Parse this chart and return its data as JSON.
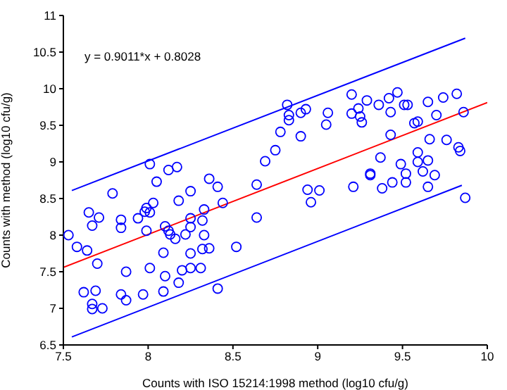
{
  "chart_data": {
    "type": "scatter",
    "xlabel": "Counts with ISO 15214:1998 method (log10 cfu/g)",
    "ylabel": "Counts with method (log10 cfu/g)",
    "annotations": [
      "y = 0.9011*x + 0.8028"
    ],
    "xlim": [
      7.5,
      10
    ],
    "ylim": [
      6.5,
      11
    ],
    "xticks": [
      7.5,
      8,
      8.5,
      9,
      9.5,
      10
    ],
    "yticks": [
      6.5,
      7,
      7.5,
      8,
      8.5,
      9,
      9.5,
      10,
      10.5,
      11
    ],
    "grid": false,
    "legend": false,
    "series": [
      {
        "color": "#0000ff",
        "marker": "circle",
        "x": [
          8.36,
          8.05,
          8.41,
          8.64,
          7.79,
          8.25,
          8.18,
          8.44,
          8.03,
          7.99,
          7.98,
          8.01,
          8.33,
          7.65,
          7.71,
          7.84,
          7.94,
          8.32,
          8.25,
          7.67,
          7.84,
          8.1,
          7.99,
          8.12,
          8.25,
          8.64,
          7.53,
          8.13,
          8.16,
          8.22,
          8.33,
          7.58,
          7.64,
          8.09,
          8.25,
          8.32,
          8.36,
          8.52,
          7.7,
          7.87,
          8.01,
          8.1,
          8.2,
          8.25,
          8.31,
          8.18,
          8.41,
          7.62,
          7.69,
          7.84,
          7.87,
          7.97,
          8.09,
          7.67,
          7.67,
          7.73,
          8.01,
          8.12,
          8.17,
          8.69,
          8.75,
          8.78,
          8.82,
          8.83,
          8.83,
          8.9,
          8.93,
          8.9,
          9.06,
          9.05,
          9.2,
          9.2,
          9.24,
          9.25,
          9.26,
          9.29,
          9.36,
          9.42,
          9.47,
          9.43,
          9.51,
          9.53,
          9.57,
          9.59,
          9.65,
          9.74,
          9.82,
          9.7,
          9.86,
          9.43,
          9.66,
          9.76,
          9.83,
          9.84,
          9.37,
          9.49,
          9.59,
          9.59,
          9.65,
          9.62,
          9.69,
          9.52,
          9.31,
          9.31,
          8.94,
          9.01,
          8.96,
          9.21,
          9.38,
          9.44,
          9.52,
          9.65,
          9.87
        ],
        "values": [
          8.77,
          8.73,
          8.66,
          8.69,
          8.57,
          8.6,
          8.47,
          8.44,
          8.44,
          8.37,
          8.32,
          8.31,
          8.35,
          8.31,
          8.24,
          8.21,
          8.23,
          8.2,
          8.23,
          8.13,
          8.1,
          8.12,
          8.06,
          8.06,
          8.11,
          8.24,
          8.0,
          8.01,
          7.95,
          8.01,
          8.0,
          7.84,
          7.79,
          7.76,
          7.75,
          7.81,
          7.82,
          7.84,
          7.61,
          7.5,
          7.55,
          7.44,
          7.52,
          7.55,
          7.55,
          7.35,
          7.27,
          7.22,
          7.24,
          7.19,
          7.11,
          7.19,
          7.23,
          7.06,
          6.99,
          7.0,
          8.97,
          8.89,
          8.93,
          9.01,
          9.16,
          9.41,
          9.78,
          9.64,
          9.57,
          9.67,
          9.72,
          9.35,
          9.67,
          9.51,
          9.92,
          9.66,
          9.73,
          9.62,
          9.54,
          9.84,
          9.78,
          9.87,
          9.95,
          9.68,
          9.78,
          9.78,
          9.53,
          9.55,
          9.82,
          9.88,
          9.93,
          9.64,
          9.68,
          9.37,
          9.31,
          9.3,
          9.2,
          9.15,
          9.06,
          8.97,
          9.13,
          9.0,
          9.02,
          8.87,
          8.82,
          8.84,
          8.84,
          8.82,
          8.62,
          8.61,
          8.45,
          8.66,
          8.64,
          8.72,
          8.72,
          8.66,
          8.51
        ]
      },
      {
        "type": "line",
        "color": "#ff0000",
        "x": [
          7.5,
          10
        ],
        "values": [
          7.56,
          9.81
        ]
      },
      {
        "type": "line",
        "color": "#0000ff",
        "x": [
          7.55,
          9.87
        ],
        "values": [
          8.61,
          10.69
        ]
      },
      {
        "type": "line",
        "color": "#0000ff",
        "x": [
          7.55,
          9.85
        ],
        "values": [
          6.61,
          8.68
        ]
      }
    ]
  }
}
